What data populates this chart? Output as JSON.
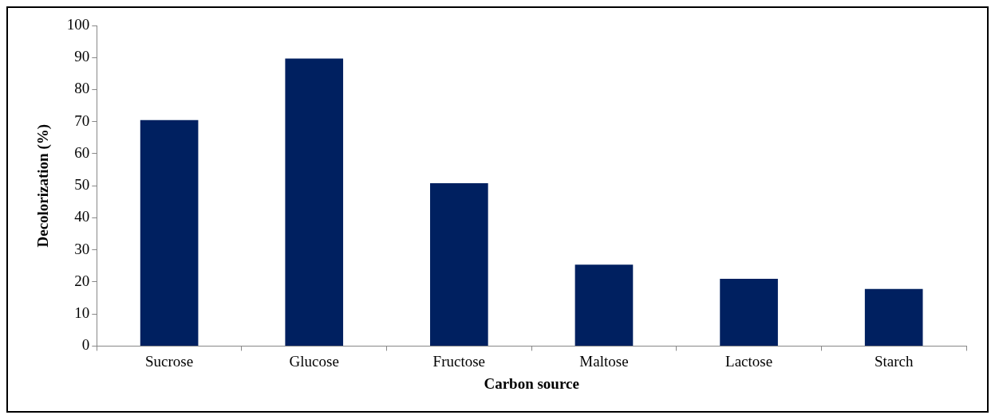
{
  "chart_data": {
    "type": "bar",
    "xlabel": "Carbon source",
    "ylabel": "Decolorization (%)",
    "categories": [
      "Sucrose",
      "Glucose",
      "Fructose",
      "Maltose",
      "Lactose",
      "Starch"
    ],
    "values": [
      70.5,
      89.7,
      50.8,
      25.4,
      21,
      17.8
    ],
    "color": "#002060",
    "ylim": [
      0,
      100
    ],
    "yticks": [
      0,
      10,
      20,
      30,
      40,
      50,
      60,
      70,
      80,
      90,
      100
    ],
    "grid": false,
    "legend": false
  }
}
